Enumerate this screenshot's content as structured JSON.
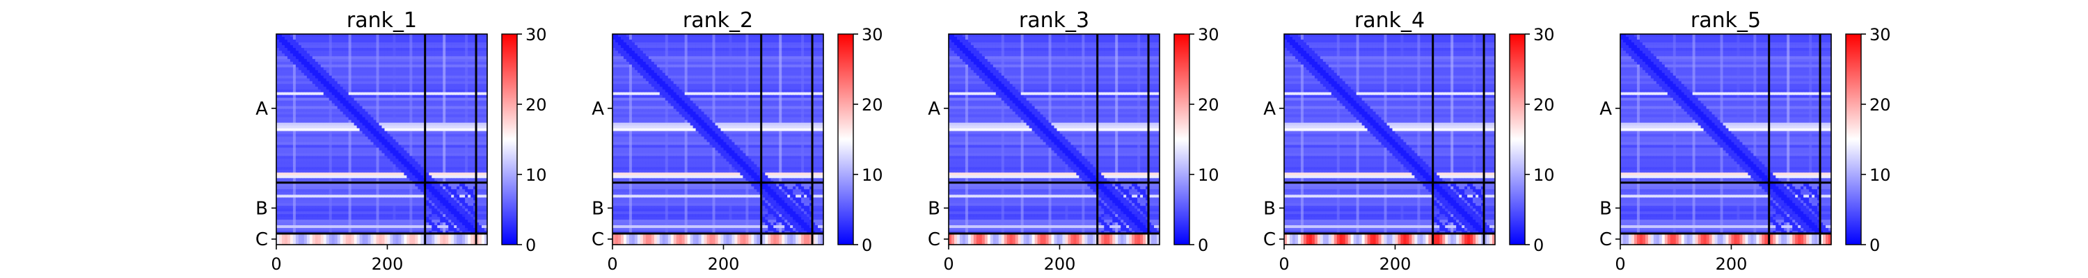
{
  "chart_data": {
    "type": "heatmap",
    "colormap": {
      "name": "bwr",
      "low": "#0000ff",
      "mid": "#ffffff",
      "high": "#ff0000",
      "vmin": 0,
      "vmax": 30,
      "ticks": [
        "0",
        "10",
        "20",
        "30"
      ]
    },
    "x_ticks": [
      {
        "value": 0,
        "label": "0"
      },
      {
        "value": 200,
        "label": "200"
      }
    ],
    "x_range": [
      0,
      380
    ],
    "y_range": [
      0,
      380
    ],
    "chain_boundaries": [
      268,
      360
    ],
    "row_labels": [
      {
        "center": 134,
        "label": "A"
      },
      {
        "center": 314,
        "label": "B"
      },
      {
        "center": 370,
        "label": "C"
      }
    ],
    "panels": [
      {
        "title": "rank_1",
        "band_level": 0.55
      },
      {
        "title": "rank_2",
        "band_level": 0.7
      },
      {
        "title": "rank_3",
        "band_level": 0.85
      },
      {
        "title": "rank_4",
        "band_level": 1.0
      },
      {
        "title": "rank_5",
        "band_level": 0.9
      }
    ]
  }
}
